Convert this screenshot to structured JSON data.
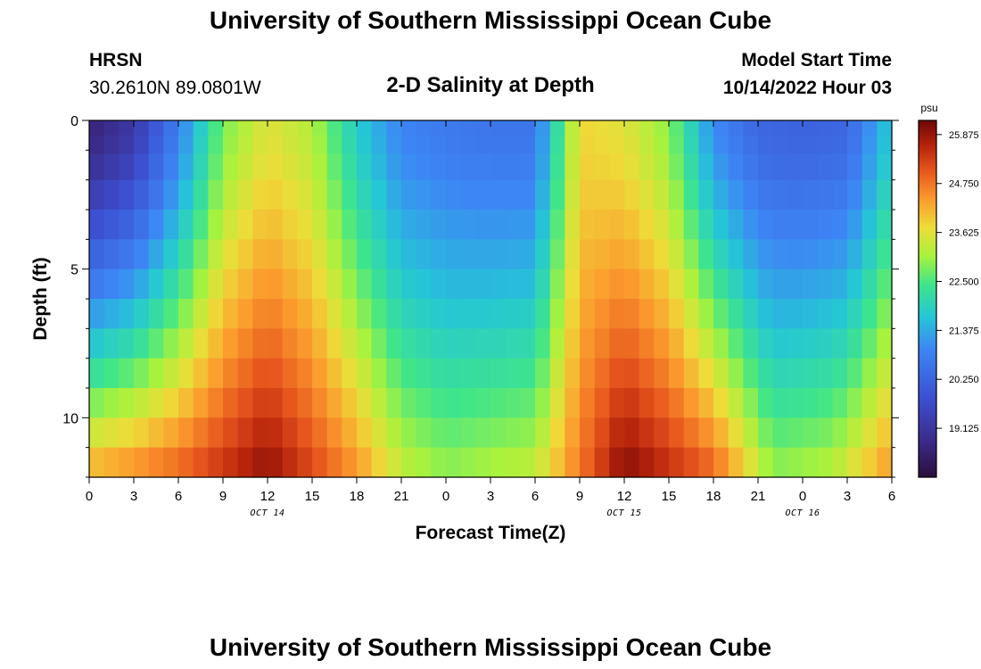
{
  "page": {
    "title": "University of Southern Mississippi Ocean Cube",
    "footer_title": "University of Southern Mississippi Ocean Cube",
    "station": "HRSN",
    "coords": "30.2610N  89.0801W",
    "plot_title": "2-D Salinity at Depth",
    "model_start_label": "Model Start Time",
    "model_start_value": "10/14/2022 Hour 03"
  },
  "chart_data": {
    "type": "heatmap",
    "title": "2-D Salinity at Depth",
    "xlabel": "Forecast Time(Z)",
    "ylabel": "Depth (ft)",
    "x_ticks": [
      "0",
      "3",
      "6",
      "9",
      "12",
      "15",
      "18",
      "21",
      "0",
      "3",
      "6",
      "9",
      "12",
      "15",
      "18",
      "21",
      "0",
      "3",
      "6"
    ],
    "date_labels": [
      {
        "label": "OCT 14",
        "tick_index": 4
      },
      {
        "label": "OCT 15",
        "tick_index": 12
      },
      {
        "label": "OCT 16",
        "tick_index": 16
      }
    ],
    "xlim_hours": [
      0,
      54
    ],
    "y_ticks": [
      "0",
      "5",
      "10"
    ],
    "ylim_ft": [
      0,
      12
    ],
    "depth_layers_ft": [
      0.25,
      0.75,
      1.5,
      2.5,
      3.5,
      4.5,
      5.5,
      6.5,
      7.5,
      8.5,
      9.5,
      10.5,
      11.5
    ],
    "colorbar": {
      "unit": "psu",
      "vmin": 18.0,
      "vmax": 26.2,
      "ticks": [
        "25.875",
        "24.750",
        "23.625",
        "22.500",
        "21.375",
        "20.250",
        "19.125"
      ]
    },
    "surface_salinity_psu": [
      {
        "hour": 0,
        "value": 18.6
      },
      {
        "hour": 3,
        "value": 19.2
      },
      {
        "hour": 6,
        "value": 20.8
      },
      {
        "hour": 9,
        "value": 22.8
      },
      {
        "hour": 12,
        "value": 23.6
      },
      {
        "hour": 15,
        "value": 23.2
      },
      {
        "hour": 18,
        "value": 21.8
      },
      {
        "hour": 21,
        "value": 20.9
      },
      {
        "hour": 24,
        "value": 20.7
      },
      {
        "hour": 27,
        "value": 20.6
      },
      {
        "hour": 30,
        "value": 20.6
      },
      {
        "hour": 33,
        "value": 23.8
      },
      {
        "hour": 36,
        "value": 23.6
      },
      {
        "hour": 39,
        "value": 22.9
      },
      {
        "hour": 42,
        "value": 21.0
      },
      {
        "hour": 45,
        "value": 20.3
      },
      {
        "hour": 48,
        "value": 20.2
      },
      {
        "hour": 51,
        "value": 20.3
      },
      {
        "hour": 54,
        "value": 21.8
      }
    ],
    "bottom_salinity_psu": [
      {
        "hour": 0,
        "value": 24.3
      },
      {
        "hour": 6,
        "value": 25.0
      },
      {
        "hour": 12,
        "value": 26.0
      },
      {
        "hour": 18,
        "value": 24.5
      },
      {
        "hour": 21,
        "value": 23.4
      },
      {
        "hour": 24,
        "value": 23.0
      },
      {
        "hour": 30,
        "value": 23.4
      },
      {
        "hour": 36,
        "value": 26.1
      },
      {
        "hour": 42,
        "value": 25.0
      },
      {
        "hour": 46,
        "value": 23.0
      },
      {
        "hour": 50,
        "value": 23.3
      },
      {
        "hour": 54,
        "value": 24.5
      }
    ]
  }
}
